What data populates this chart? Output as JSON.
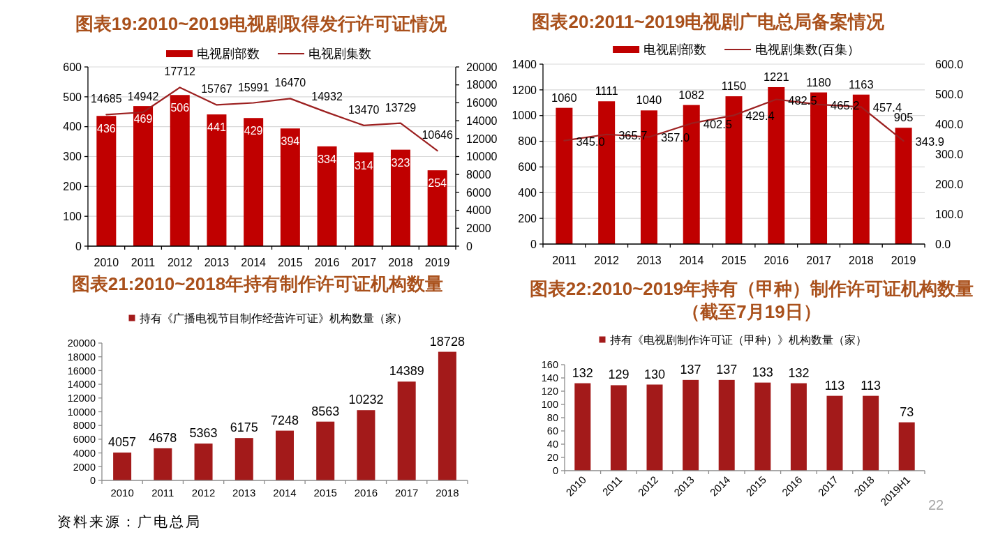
{
  "chart_data": [
    {
      "type": "bar",
      "title": "图表19:2010~2019电视剧取得发行许可证情况",
      "categories": [
        "2010",
        "2011",
        "2012",
        "2013",
        "2014",
        "2015",
        "2016",
        "2017",
        "2018",
        "2019"
      ],
      "series": [
        {
          "name": "电视剧部数",
          "color": "#c00000",
          "values": [
            436,
            469,
            506,
            441,
            429,
            394,
            334,
            314,
            323,
            254
          ]
        },
        {
          "name": "电视剧集数",
          "type": "line",
          "axis": "y2",
          "color": "#9c2020",
          "values": [
            14685,
            14942,
            17712,
            15767,
            15991,
            16470,
            14932,
            13470,
            13729,
            10646
          ]
        }
      ],
      "ylim": [
        0,
        600
      ],
      "yticks": [
        0,
        100,
        200,
        300,
        400,
        500,
        600
      ],
      "y2lim": [
        0,
        20000
      ],
      "y2ticks": [
        0,
        2000,
        4000,
        6000,
        8000,
        10000,
        12000,
        14000,
        16000,
        18000,
        20000
      ],
      "data_labels": true,
      "grid": "y",
      "legend": "top"
    },
    {
      "type": "bar",
      "title": "图表20:2011~2019电视剧广电总局备案情况",
      "categories": [
        "2011",
        "2012",
        "2013",
        "2014",
        "2015",
        "2016",
        "2017",
        "2018",
        "2019"
      ],
      "series": [
        {
          "name": "电视剧部数",
          "color": "#c00000",
          "values": [
            1060,
            1111,
            1040,
            1082,
            1150,
            1221,
            1180,
            1163,
            905
          ],
          "value_labels": [
            "1060",
            "1111",
            "1040",
            "1082",
            "1150",
            "1221",
            "1180",
            "1163",
            "905"
          ]
        },
        {
          "name": "电视剧集数(百集）",
          "type": "line",
          "axis": "y2",
          "color": "#9c2020",
          "values": [
            345.0,
            365.7,
            357.0,
            402.5,
            429.4,
            482.5,
            465.2,
            457.4,
            343.9
          ],
          "value_labels": [
            "345.0",
            "365.7",
            "357.0",
            "402.5",
            "429.4",
            "482.5",
            "465.2",
            "457.4",
            "343.9"
          ]
        }
      ],
      "ylim": [
        0,
        1400
      ],
      "yticks": [
        0,
        200,
        400,
        600,
        800,
        1000,
        1200,
        1400
      ],
      "y2lim": [
        0,
        600
      ],
      "y2ticks": [
        {
          "value": 0,
          "label": "0.0"
        },
        {
          "value": 100,
          "label": "100.0"
        },
        {
          "value": 200,
          "label": "200.0"
        },
        {
          "value": 300,
          "label": "300.0"
        },
        {
          "value": 400,
          "label": "400.0"
        },
        {
          "value": 500,
          "label": "500.0"
        },
        {
          "value": 600,
          "label": "600.0"
        }
      ],
      "grid": "y",
      "legend": "top"
    },
    {
      "type": "bar",
      "title": "图表21:2010~2018年持有制作许可证机构数量",
      "categories": [
        "2010",
        "2011",
        "2012",
        "2013",
        "2014",
        "2015",
        "2016",
        "2017",
        "2018"
      ],
      "series": [
        {
          "name": "持有《广播电视节目制作经营许可证》机构数量（家）",
          "color": "#a31a1a",
          "values": [
            4057,
            4678,
            5363,
            6175,
            7248,
            8563,
            10232,
            14389,
            18728
          ]
        }
      ],
      "ylim": [
        0,
        20000
      ],
      "yticks": [
        0,
        2000,
        4000,
        6000,
        8000,
        10000,
        12000,
        14000,
        16000,
        18000,
        20000
      ],
      "data_labels": true,
      "legend": "top",
      "annotations": [
        "资料来源：广电总局"
      ]
    },
    {
      "type": "bar",
      "title": "图表22:2010~2019年持有（甲种）制作许可证机构数量（截至7月19日）",
      "categories": [
        "2010",
        "2011",
        "2012",
        "2013",
        "2014",
        "2015",
        "2016",
        "2017",
        "2018",
        "2019H1"
      ],
      "series": [
        {
          "name": "持有《电视剧制作许可证（甲种）》机构数量（家）",
          "color": "#a31a1a",
          "values": [
            132,
            129,
            130,
            137,
            137,
            133,
            132,
            113,
            113,
            73
          ]
        }
      ],
      "ylim": [
        0,
        160
      ],
      "yticks": [
        0,
        20,
        40,
        60,
        80,
        100,
        120,
        140,
        160
      ],
      "data_labels": true,
      "legend": "top",
      "annotations": [
        "22"
      ]
    }
  ]
}
